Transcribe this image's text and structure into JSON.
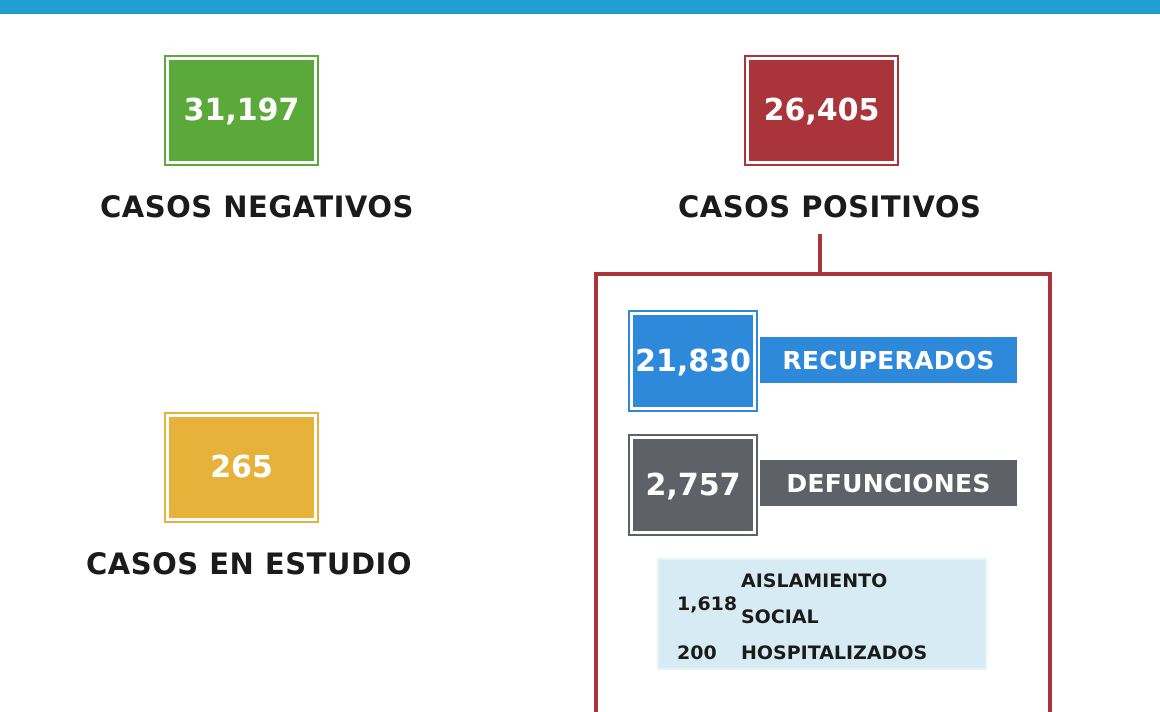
{
  "negativos": {
    "value": "31,197",
    "label": "CASOS NEGATIVOS",
    "color": "#5aa93a"
  },
  "positivos": {
    "value": "26,405",
    "label": "CASOS POSITIVOS",
    "color": "#a9343a"
  },
  "estudio": {
    "value": "265",
    "label": "CASOS EN ESTUDIO",
    "color": "#e7b23a"
  },
  "recuperados": {
    "value": "21,830",
    "label": "RECUPERADOS",
    "color": "#2f89db"
  },
  "defunciones": {
    "value": "2,757",
    "label": "DEFUNCIONES",
    "color": "#5e6167"
  },
  "detalle": {
    "aislamiento": {
      "value": "1,618",
      "label_line1": "AISLAMIENTO",
      "label_line2": "SOCIAL"
    },
    "hospitalizados": {
      "value": "200",
      "label": "HOSPITALIZADOS"
    }
  }
}
